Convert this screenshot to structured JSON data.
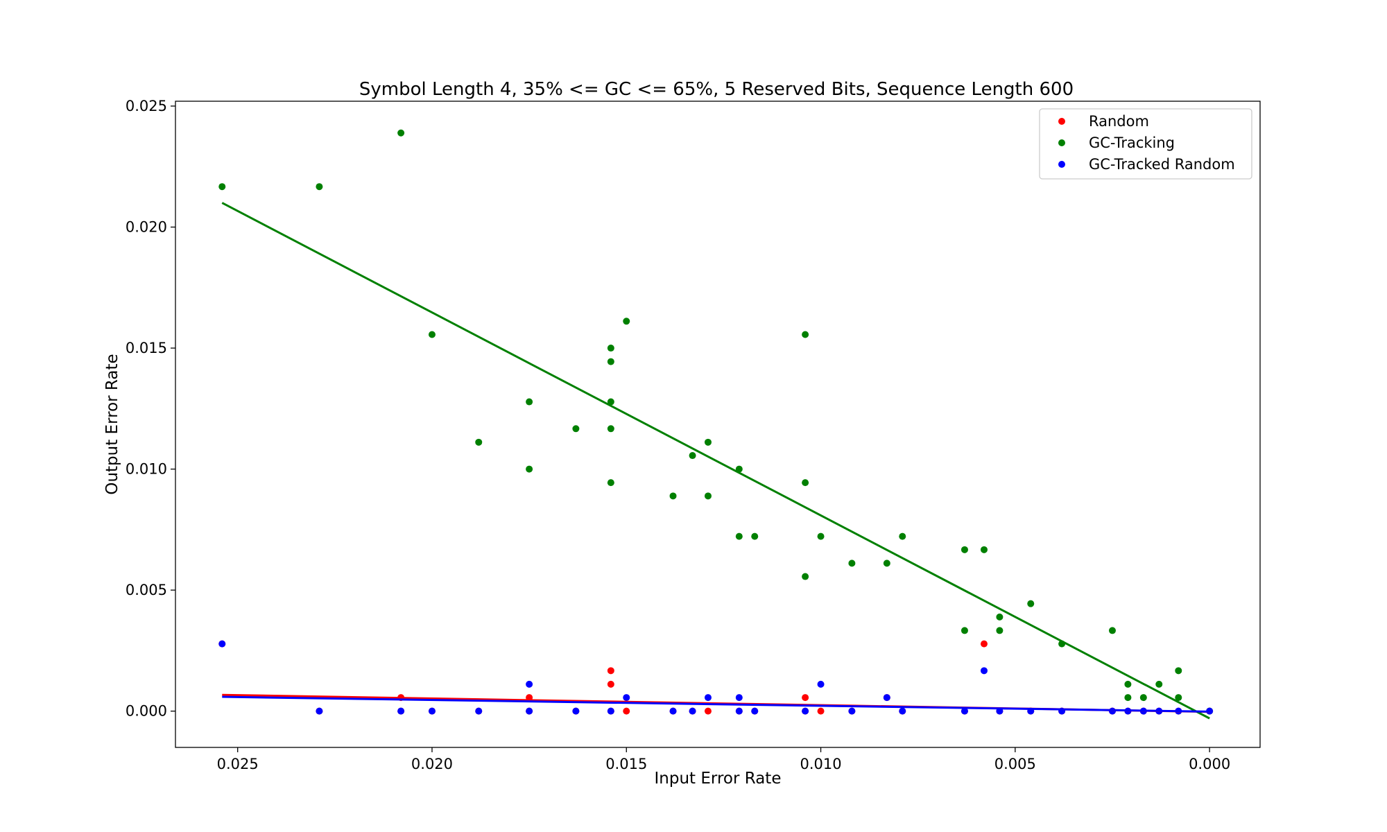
{
  "chart_data": {
    "type": "scatter",
    "title": "Symbol Length 4, 35% <= GC <= 65%, 5 Reserved Bits, Sequence Length 600",
    "xlabel": "Input Error Rate",
    "ylabel": "Output Error Rate",
    "xlim": [
      0.0266,
      -0.0013
    ],
    "ylim": [
      -0.0015,
      0.0252
    ],
    "x_inverted": true,
    "xticks": [
      "0.025",
      "0.020",
      "0.015",
      "0.010",
      "0.005",
      "0.000"
    ],
    "xtick_values": [
      0.025,
      0.02,
      0.015,
      0.01,
      0.005,
      0.0
    ],
    "yticks": [
      "0.000",
      "0.005",
      "0.010",
      "0.015",
      "0.020",
      "0.025"
    ],
    "ytick_values": [
      0.0,
      0.005,
      0.01,
      0.015,
      0.02,
      0.025
    ],
    "grid": false,
    "legend_position": "top-right",
    "series": [
      {
        "name": "Random",
        "color": "#ff0000",
        "points": [
          [
            0.0254,
            0.00278
          ],
          [
            0.0229,
            0.0
          ],
          [
            0.0208,
            0.00056
          ],
          [
            0.0208,
            0.0
          ],
          [
            0.02,
            0.0
          ],
          [
            0.0188,
            0.0
          ],
          [
            0.0175,
            0.00056
          ],
          [
            0.0175,
            0.0
          ],
          [
            0.0163,
            0.0
          ],
          [
            0.0154,
            0.00167
          ],
          [
            0.0154,
            0.00111
          ],
          [
            0.0154,
            0.0
          ],
          [
            0.015,
            0.0
          ],
          [
            0.0138,
            0.0
          ],
          [
            0.0133,
            0.0
          ],
          [
            0.0129,
            0.0
          ],
          [
            0.0121,
            0.0
          ],
          [
            0.0117,
            0.0
          ],
          [
            0.0104,
            0.00056
          ],
          [
            0.0104,
            0.0
          ],
          [
            0.01,
            0.0
          ],
          [
            0.0092,
            0.0
          ],
          [
            0.0083,
            0.00056
          ],
          [
            0.0079,
            0.0
          ],
          [
            0.0063,
            0.0
          ],
          [
            0.0058,
            0.00278
          ],
          [
            0.0054,
            0.0
          ],
          [
            0.0046,
            0.0
          ],
          [
            0.0038,
            0.0
          ],
          [
            0.0025,
            0.0
          ],
          [
            0.0021,
            0.0
          ],
          [
            0.0017,
            0.0
          ],
          [
            0.0013,
            0.0
          ],
          [
            0.0008,
            0.0
          ],
          [
            0.0,
            0.0
          ]
        ],
        "trend": [
          [
            0.0254,
            0.00067
          ],
          [
            0.0,
            -3e-05
          ]
        ]
      },
      {
        "name": "GC-Tracking",
        "color": "#008000",
        "points": [
          [
            0.0254,
            0.02167
          ],
          [
            0.0229,
            0.02167
          ],
          [
            0.0208,
            0.02389
          ],
          [
            0.02,
            0.01556
          ],
          [
            0.0188,
            0.01111
          ],
          [
            0.0175,
            0.01278
          ],
          [
            0.0175,
            0.01
          ],
          [
            0.0163,
            0.01167
          ],
          [
            0.0154,
            0.015
          ],
          [
            0.0154,
            0.01444
          ],
          [
            0.0154,
            0.01278
          ],
          [
            0.0154,
            0.01167
          ],
          [
            0.0154,
            0.00944
          ],
          [
            0.015,
            0.01611
          ],
          [
            0.0138,
            0.00889
          ],
          [
            0.0133,
            0.01056
          ],
          [
            0.0129,
            0.01111
          ],
          [
            0.0129,
            0.00889
          ],
          [
            0.0121,
            0.01
          ],
          [
            0.0121,
            0.00722
          ],
          [
            0.0117,
            0.00722
          ],
          [
            0.0104,
            0.01556
          ],
          [
            0.0104,
            0.00944
          ],
          [
            0.0104,
            0.00556
          ],
          [
            0.01,
            0.00722
          ],
          [
            0.0092,
            0.00611
          ],
          [
            0.0083,
            0.00611
          ],
          [
            0.0079,
            0.00722
          ],
          [
            0.0063,
            0.00667
          ],
          [
            0.0063,
            0.00333
          ],
          [
            0.0058,
            0.00667
          ],
          [
            0.0054,
            0.00389
          ],
          [
            0.0054,
            0.00333
          ],
          [
            0.0046,
            0.00444
          ],
          [
            0.0038,
            0.00278
          ],
          [
            0.0025,
            0.00333
          ],
          [
            0.0021,
            0.00111
          ],
          [
            0.0021,
            0.00056
          ],
          [
            0.0017,
            0.00056
          ],
          [
            0.0013,
            0.00111
          ],
          [
            0.0008,
            0.00167
          ],
          [
            0.0008,
            0.00056
          ],
          [
            0.0,
            0.0
          ]
        ],
        "trend": [
          [
            0.0254,
            0.021
          ],
          [
            0.0,
            -0.0003
          ]
        ]
      },
      {
        "name": "GC-Tracked Random",
        "color": "#0000ff",
        "points": [
          [
            0.0254,
            0.00278
          ],
          [
            0.0229,
            0.0
          ],
          [
            0.0208,
            0.0
          ],
          [
            0.02,
            0.0
          ],
          [
            0.0188,
            0.0
          ],
          [
            0.0175,
            0.00111
          ],
          [
            0.0175,
            0.0
          ],
          [
            0.0163,
            0.0
          ],
          [
            0.0154,
            0.0
          ],
          [
            0.015,
            0.00056
          ],
          [
            0.0138,
            0.0
          ],
          [
            0.0133,
            0.0
          ],
          [
            0.0129,
            0.00056
          ],
          [
            0.0121,
            0.00056
          ],
          [
            0.0121,
            0.0
          ],
          [
            0.0117,
            0.0
          ],
          [
            0.0104,
            0.0
          ],
          [
            0.01,
            0.00111
          ],
          [
            0.0092,
            0.0
          ],
          [
            0.0083,
            0.00056
          ],
          [
            0.0079,
            0.0
          ],
          [
            0.0063,
            0.0
          ],
          [
            0.0058,
            0.00167
          ],
          [
            0.0054,
            0.0
          ],
          [
            0.0046,
            0.0
          ],
          [
            0.0038,
            0.0
          ],
          [
            0.0025,
            0.0
          ],
          [
            0.0021,
            0.0
          ],
          [
            0.0017,
            0.0
          ],
          [
            0.0013,
            0.0
          ],
          [
            0.0008,
            0.0
          ],
          [
            0.0,
            0.0
          ]
        ],
        "trend": [
          [
            0.0254,
            0.00059
          ],
          [
            0.0,
            -2e-05
          ]
        ]
      }
    ]
  }
}
